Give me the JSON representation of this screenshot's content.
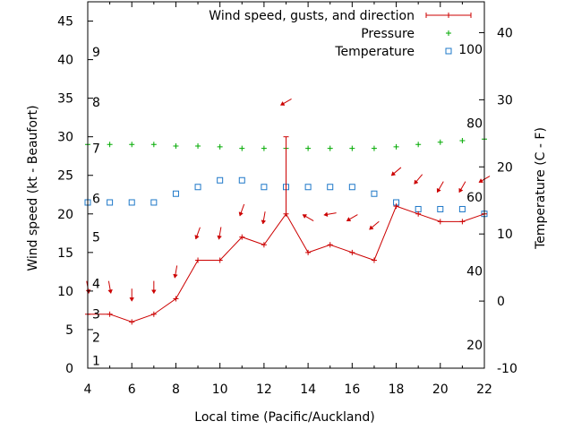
{
  "chart_data": {
    "type": "line",
    "xlabel": "Local time (Pacific/Auckland)",
    "ylabel_left": "Wind speed (kt - Beaufort)",
    "ylabel_right": "Temperature (C - F)",
    "xlim": [
      4,
      22
    ],
    "ylim_left": [
      0,
      47.5
    ],
    "ylim_right": [
      -10,
      44.6
    ],
    "x_ticks": [
      4,
      6,
      8,
      10,
      12,
      14,
      16,
      18,
      20,
      22
    ],
    "y_ticks_left": [
      0,
      5,
      10,
      15,
      20,
      25,
      30,
      35,
      40,
      45
    ],
    "y_ticks_right": [
      -10,
      0,
      10,
      20,
      30,
      40
    ],
    "beaufort_labels": [
      {
        "label": "1",
        "kt": 1
      },
      {
        "label": "2",
        "kt": 4
      },
      {
        "label": "3",
        "kt": 7
      },
      {
        "label": "4",
        "kt": 11
      },
      {
        "label": "5",
        "kt": 17
      },
      {
        "label": "6",
        "kt": 22
      },
      {
        "label": "7",
        "kt": 28.5
      },
      {
        "label": "8",
        "kt": 34.5
      },
      {
        "label": "9",
        "kt": 41
      }
    ],
    "fahrenheit_labels": [
      {
        "label": "20",
        "c": -6.5
      },
      {
        "label": "40",
        "c": 4.5
      },
      {
        "label": "60",
        "c": 15.5
      },
      {
        "label": "80",
        "c": 26.5
      },
      {
        "label": "100",
        "c": 37.5
      }
    ],
    "legend": [
      {
        "label": "Wind speed, gusts, and direction",
        "color": "#cc0000"
      },
      {
        "label": "Pressure",
        "color": "#00aa00"
      },
      {
        "label": "Temperature",
        "color": "#1e78c8"
      }
    ],
    "x": [
      4,
      5,
      6,
      7,
      8,
      9,
      10,
      11,
      12,
      13,
      14,
      15,
      16,
      17,
      18,
      19,
      20,
      21,
      22
    ],
    "series": [
      {
        "name": "Wind speed",
        "axis": "left",
        "color": "#cc0000",
        "values": [
          7,
          7,
          6,
          7,
          9,
          14,
          14,
          17,
          16,
          20,
          15,
          16,
          15,
          14,
          21,
          20,
          19,
          19,
          20
        ],
        "gusts": [
          null,
          null,
          null,
          null,
          null,
          null,
          null,
          null,
          null,
          30,
          null,
          null,
          null,
          null,
          null,
          null,
          null,
          null,
          null
        ]
      },
      {
        "name": "Wind direction arrows",
        "axis": "left",
        "color": "#cc0000",
        "arrow_y": [
          10.5,
          10.5,
          9.5,
          10.5,
          12.5,
          17.5,
          17.5,
          20.5,
          19.5,
          34.5,
          19.5,
          20,
          19.5,
          18.5,
          25.5,
          24.5,
          23.5,
          23.5,
          24.5
        ],
        "arrow_deg": [
          170,
          170,
          180,
          180,
          190,
          200,
          190,
          200,
          190,
          240,
          300,
          260,
          240,
          230,
          230,
          220,
          210,
          210,
          240
        ]
      },
      {
        "name": "Pressure",
        "axis": "left",
        "color": "#00aa00",
        "values": [
          29,
          29,
          29,
          29,
          28.8,
          28.8,
          28.7,
          28.5,
          28.5,
          28.5,
          28.5,
          28.5,
          28.5,
          28.5,
          28.7,
          29,
          29.3,
          29.5,
          29.7
        ]
      },
      {
        "name": "Temperature",
        "axis": "right",
        "color": "#1e78c8",
        "values": [
          14.7,
          14.7,
          14.7,
          14.7,
          16,
          17,
          18,
          18,
          17,
          17,
          17,
          17,
          17,
          16,
          14.7,
          13.7,
          13.7,
          13.7,
          13
        ]
      }
    ]
  }
}
